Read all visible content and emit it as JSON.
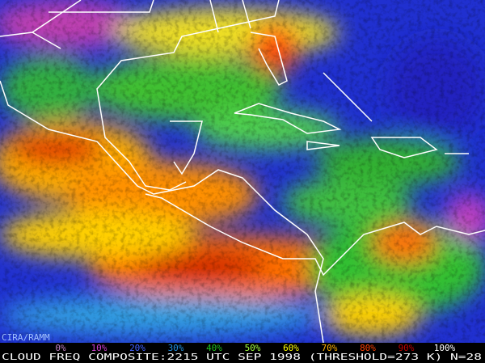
{
  "source": "CIRA/RAMM",
  "legend": [
    {
      "label": "0%",
      "color": "#c080c0"
    },
    {
      "label": "10%",
      "color": "#d040d0"
    },
    {
      "label": "20%",
      "color": "#4060ff"
    },
    {
      "label": "30%",
      "color": "#2090e0"
    },
    {
      "label": "40%",
      "color": "#20c020"
    },
    {
      "label": "50%",
      "color": "#a0ff40"
    },
    {
      "label": "60%",
      "color": "#ffff00"
    },
    {
      "label": "70%",
      "color": "#ffb000"
    },
    {
      "label": "80%",
      "color": "#ff4000"
    },
    {
      "label": "90%",
      "color": "#c00000"
    },
    {
      "label": "100%",
      "color": "#ffffff"
    }
  ],
  "caption": "CLOUD FREQ COMPOSITE:2215 UTC SEP 1998 (THRESHOLD=273 K) N=28"
}
